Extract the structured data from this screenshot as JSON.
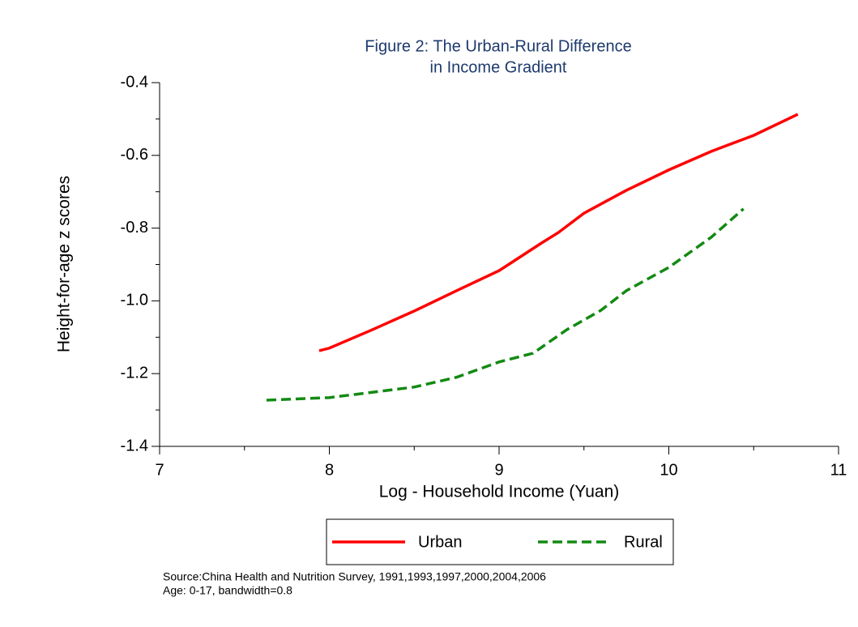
{
  "chart_data": {
    "type": "line",
    "title": [
      "Figure 2: The Urban-Rural Difference",
      "in Income Gradient"
    ],
    "x_label": "Log - Household Income (Yuan)",
    "y_label": "Height-for-age z scores",
    "xlim": [
      7,
      11
    ],
    "xticks": [
      7,
      8,
      9,
      10,
      11
    ],
    "xticks_minor": [
      7.5,
      8.5,
      9.5,
      10.5
    ],
    "ylim": [
      -1.4,
      -0.4
    ],
    "yticks": [
      {
        "value": -1.4,
        "label": "-1.4"
      },
      {
        "value": -1.2,
        "label": "-1.2"
      },
      {
        "value": -1,
        "label": "-1.0"
      },
      {
        "value": -0.8,
        "label": "-0.8"
      },
      {
        "value": -0.6,
        "label": "-0.6"
      },
      {
        "value": -0.4,
        "label": "-0.4"
      }
    ],
    "yticks_minor": [
      -1.3,
      -1.1,
      -0.9,
      -0.7,
      -0.5
    ],
    "grid": false,
    "legend": "bottom",
    "series": [
      {
        "name": "Urban",
        "color": "#ff0000",
        "linestyle": "solid",
        "x": [
          7.94,
          8,
          8.25,
          8.5,
          8.75,
          9,
          9.25,
          9.35,
          9.5,
          9.75,
          10,
          10.25,
          10.5,
          10.76
        ],
        "values": [
          -1.137,
          -1.13,
          -1.08,
          -1.028,
          -0.972,
          -0.917,
          -0.841,
          -0.812,
          -0.759,
          -0.696,
          -0.64,
          -0.589,
          -0.545,
          -0.487
        ]
      },
      {
        "name": "Rural",
        "color": "#138a13",
        "linestyle": "dashed",
        "x": [
          7.63,
          8,
          8.5,
          8.75,
          9,
          9.2,
          9.4,
          9.6,
          9.75,
          10,
          10.25,
          10.44
        ],
        "values": [
          -1.273,
          -1.266,
          -1.237,
          -1.21,
          -1.168,
          -1.144,
          -1.079,
          -1.026,
          -0.972,
          -0.908,
          -0.825,
          -0.747
        ]
      }
    ],
    "notes": [
      "Source:China Health and Nutrition Survey, 1991,1993,1997,2000,2004,2006",
      "Age: 0-17, bandwidth=0.8"
    ]
  }
}
